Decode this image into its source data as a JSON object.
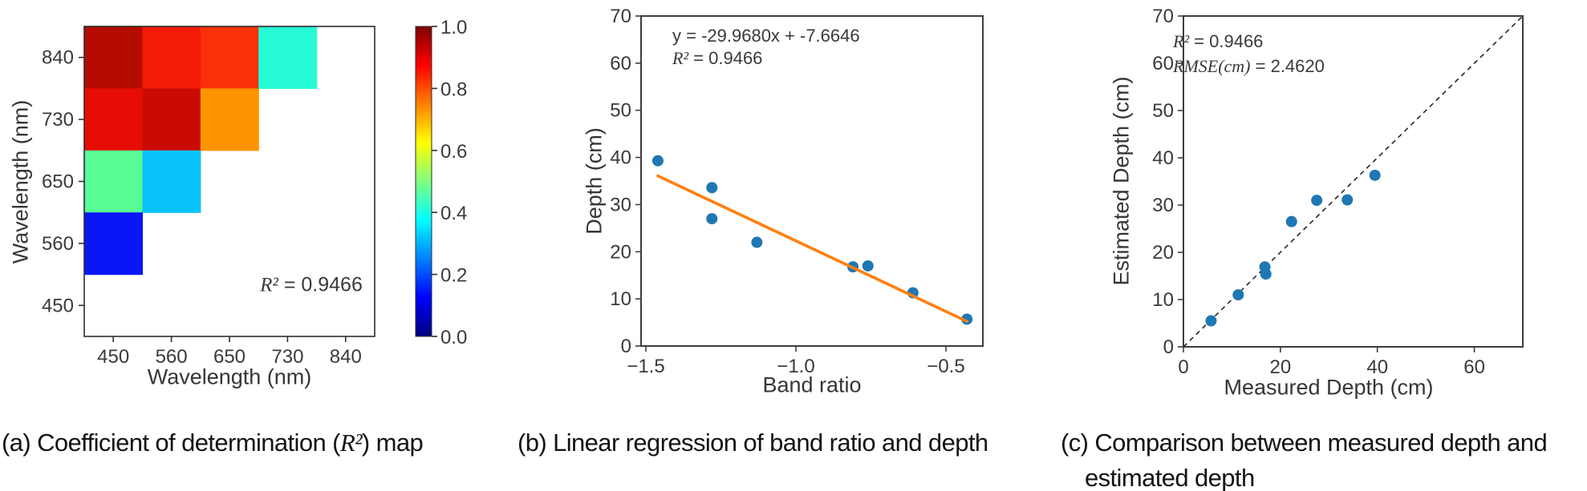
{
  "figure": {
    "background": "#ffffff",
    "accent_blue": "#1f77b4",
    "accent_orange": "#ff7f0e",
    "axis_color": "#3d3d3d"
  },
  "chart_data": [
    {
      "id": "a",
      "type": "heatmap",
      "caption_pre": "(a) Coefficient of determination (",
      "caption_math": "R²",
      "caption_post": ") map",
      "xlabel": "Wavelength (nm)",
      "ylabel": "Wavelength (nm)",
      "x_ticks": [
        "450",
        "560",
        "650",
        "730",
        "840"
      ],
      "y_ticks": [
        "840",
        "730",
        "650",
        "560",
        "450"
      ],
      "annotation_math": "R²",
      "annotation_value": " = 0.9466",
      "grid_size": 5,
      "cells": [
        {
          "row": 0,
          "col": 0,
          "value": 0.95,
          "color": "#b50b00"
        },
        {
          "row": 0,
          "col": 1,
          "value": 0.88,
          "color": "#f51b06"
        },
        {
          "row": 0,
          "col": 2,
          "value": 0.85,
          "color": "#f93008"
        },
        {
          "row": 0,
          "col": 3,
          "value": 0.42,
          "color": "#27fbd5"
        },
        {
          "row": 1,
          "col": 0,
          "value": 0.87,
          "color": "#e80d04"
        },
        {
          "row": 1,
          "col": 1,
          "value": 0.92,
          "color": "#cb0b03"
        },
        {
          "row": 1,
          "col": 2,
          "value": 0.75,
          "color": "#fe9400"
        },
        {
          "row": 2,
          "col": 0,
          "value": 0.47,
          "color": "#59fb95"
        },
        {
          "row": 2,
          "col": 1,
          "value": 0.32,
          "color": "#0ac4f9"
        },
        {
          "row": 3,
          "col": 0,
          "value": 0.13,
          "color": "#0b16f7"
        }
      ],
      "colorbar": {
        "colormap": "jet",
        "range": [
          0.0,
          1.0
        ],
        "tick_labels": [
          "1.0",
          "0.8",
          "0.6",
          "0.4",
          "0.2",
          "0.0"
        ]
      }
    },
    {
      "id": "b",
      "type": "scatter",
      "caption": "(b) Linear regression of band ratio and depth",
      "xlabel": "Band ratio",
      "ylabel": "Depth (cm)",
      "annotation_line1": "y = -29.9680x + -7.6646",
      "annotation_math": "R²",
      "annotation_value": " = 0.9466",
      "x_ticks": [
        -1.5,
        -1.0,
        -0.5
      ],
      "x_tick_labels": [
        "−1.5",
        "−1.0",
        "−0.5"
      ],
      "y_ticks": [
        0,
        10,
        20,
        30,
        40,
        50,
        60,
        70
      ],
      "xlim": [
        -1.52,
        -0.38
      ],
      "ylim": [
        0,
        70
      ],
      "points": [
        [
          -1.46,
          39.3
        ],
        [
          -1.28,
          33.6
        ],
        [
          -1.28,
          27.0
        ],
        [
          -1.13,
          22.0
        ],
        [
          -0.81,
          16.8
        ],
        [
          -0.76,
          17.0
        ],
        [
          -0.61,
          11.3
        ],
        [
          -0.43,
          5.7
        ]
      ],
      "fit_line": {
        "equation": "y = -29.9680x + -7.6646",
        "slope": -29.968,
        "intercept": -7.6646,
        "x_start": -1.46,
        "x_end": -0.43
      }
    },
    {
      "id": "c",
      "type": "scatter",
      "caption_line1": "(c) Comparison between measured depth and",
      "caption_line2": "estimated depth",
      "xlabel": "Measured Depth (cm)",
      "ylabel": "Estimated Depth (cm)",
      "annotation_math1": "R²",
      "annotation_value1": " = 0.9466",
      "annotation_math2": "RMSE(cm)",
      "annotation_value2": " = 2.4620",
      "x_ticks": [
        0,
        20,
        40,
        60
      ],
      "y_ticks": [
        0,
        10,
        20,
        30,
        40,
        50,
        60,
        70
      ],
      "xlim": [
        0,
        70
      ],
      "ylim": [
        0,
        70
      ],
      "points": [
        [
          5.7,
          5.5
        ],
        [
          11.3,
          11.0
        ],
        [
          16.8,
          16.9
        ],
        [
          17.0,
          15.4
        ],
        [
          22.3,
          26.5
        ],
        [
          27.5,
          31.0
        ],
        [
          33.8,
          31.1
        ],
        [
          39.5,
          36.3
        ]
      ],
      "identity_line": {
        "from": [
          0,
          0
        ],
        "to": [
          70,
          70
        ],
        "style": "dashed"
      }
    }
  ]
}
